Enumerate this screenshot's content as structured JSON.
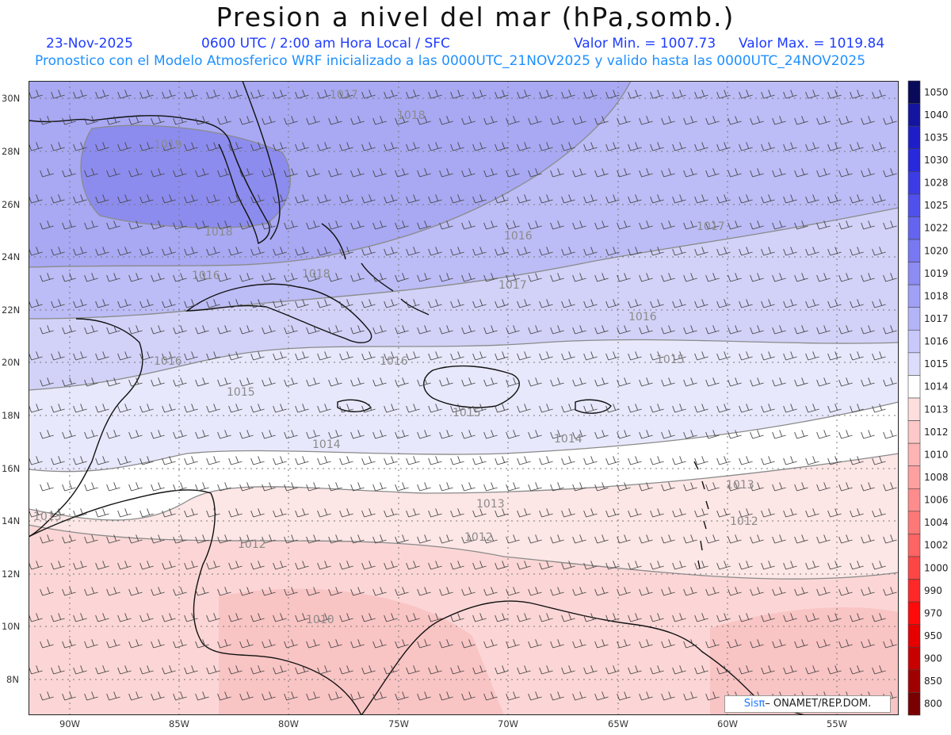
{
  "header": {
    "title": "Presion a nivel del mar (hPa,somb.)",
    "date": "23-Nov-2025",
    "time": "0600 UTC / 2:00 am Hora Local / SFC",
    "min_label": "Valor Min. = 1007.73",
    "max_label": "Valor Max. = 1019.84",
    "forecast_note": "Pronostico con el Modelo Atmosferico WRF inicializado a las 0000UTC_21NOV2025 y valido hasta las  0000UTC_24NOV2025"
  },
  "map": {
    "lat_labels": [
      "30N",
      "28N",
      "26N",
      "24N",
      "22N",
      "20N",
      "18N",
      "16N",
      "14N",
      "12N",
      "10N",
      "8N"
    ],
    "lon_labels": [
      "90W",
      "85W",
      "80W",
      "75W",
      "70W",
      "65W",
      "60W",
      "55W"
    ],
    "contour_labels": [
      "1017",
      "1018",
      "1019",
      "1018",
      "1016",
      "1017",
      "1018",
      "1016",
      "1017",
      "1016",
      "1016",
      "1015",
      "1016",
      "1015",
      "1014",
      "1014",
      "1013",
      "1013",
      "1012",
      "1012",
      "1012",
      "1010",
      "1013",
      "1015"
    ],
    "credit_sis": "Sis",
    "credit_pi": "π",
    "credit_rest": "– ONAMET/REP.DOM."
  },
  "colorbar": {
    "levels": [
      "1050",
      "1040",
      "1035",
      "1030",
      "1028",
      "1025",
      "1022",
      "1020",
      "1019",
      "1018",
      "1017",
      "1016",
      "1015",
      "1014",
      "1013",
      "1012",
      "1010",
      "1008",
      "1006",
      "1004",
      "1002",
      "1000",
      "990",
      "970",
      "950",
      "900",
      "850",
      "800"
    ],
    "colors": [
      "#0a0a5a",
      "#1414a0",
      "#1e1ec8",
      "#2828dc",
      "#3c3ce6",
      "#5050ec",
      "#6464f0",
      "#7878f2",
      "#8c8cf4",
      "#a0a0f6",
      "#b4b4f8",
      "#c8c8fa",
      "#dcdcfc",
      "#ffffff",
      "#ffdede",
      "#ffc8c8",
      "#ffb4b4",
      "#ffa0a0",
      "#ff8c8c",
      "#ff7878",
      "#ff6464",
      "#ff4646",
      "#ff2828",
      "#ff0a0a",
      "#e60000",
      "#c80000",
      "#a00000",
      "#780000"
    ]
  },
  "colors": {
    "title_blue": "#1f3cff",
    "note_blue": "#1e90ff"
  }
}
